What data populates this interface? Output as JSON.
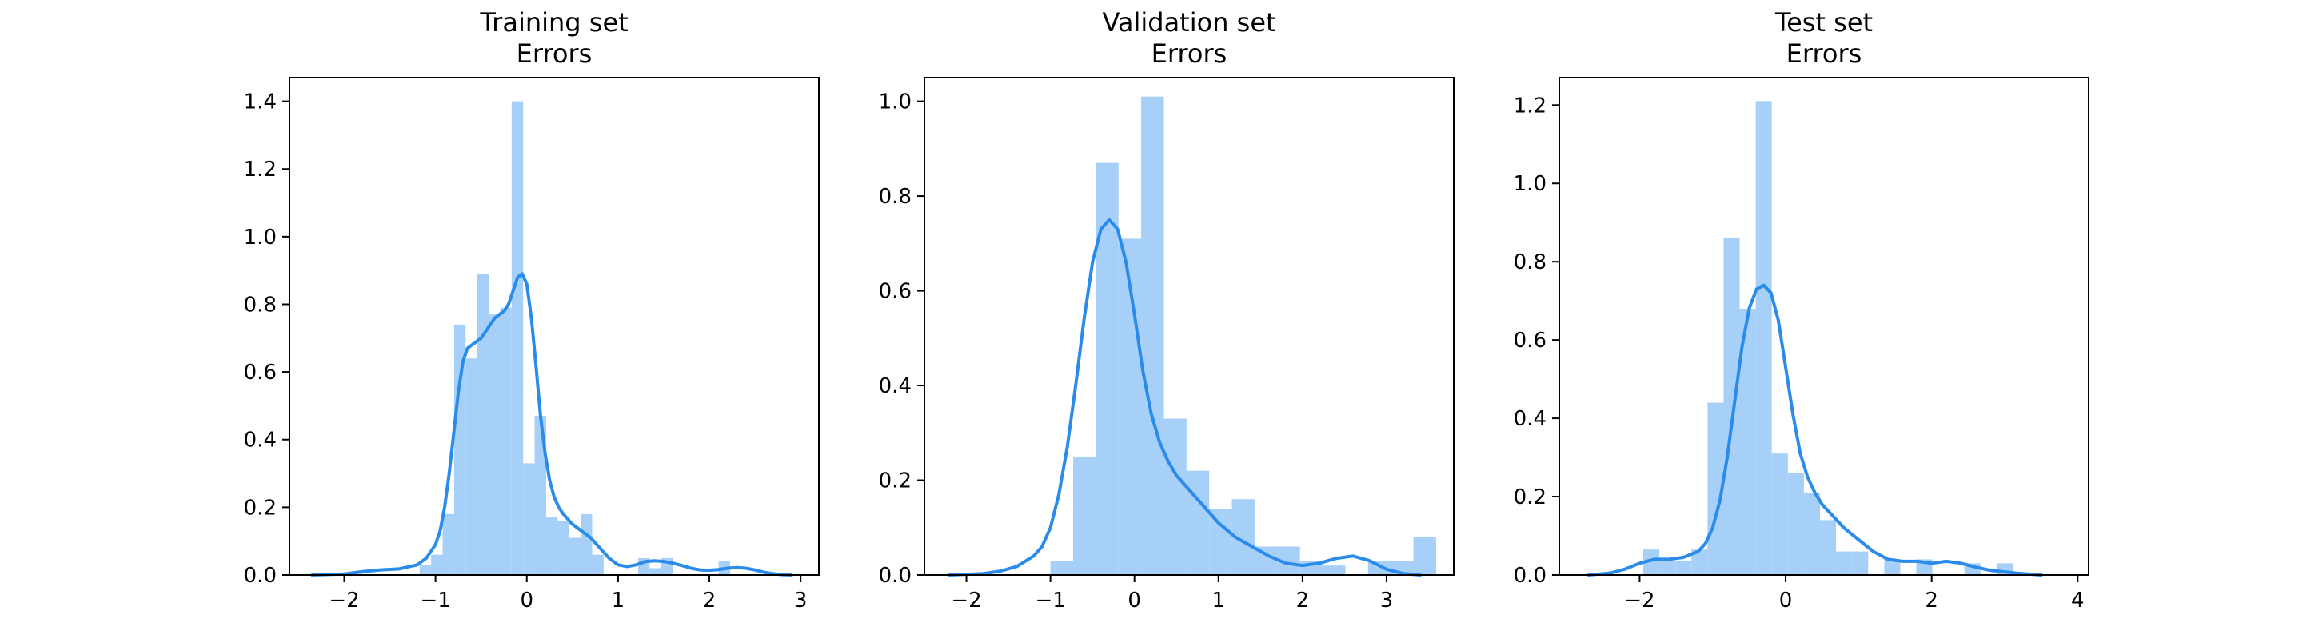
{
  "colors": {
    "bar": "#a6d0f8",
    "line": "#2a8bea",
    "axes": "#000000",
    "background": "#ffffff"
  },
  "chart_data": [
    {
      "type": "bar",
      "title_line1": "Training set",
      "title_line2": "Errors",
      "xlabel": "",
      "ylabel": "",
      "xlim": [
        -2.6,
        3.2
      ],
      "ylim": [
        0,
        1.47
      ],
      "grid": false,
      "xticks": [
        -2,
        -1,
        0,
        1,
        2,
        3
      ],
      "xtick_labels": [
        "−2",
        "−1",
        "0",
        "1",
        "2",
        "3"
      ],
      "yticks": [
        0.0,
        0.2,
        0.4,
        0.6,
        0.8,
        1.0,
        1.2,
        1.4
      ],
      "ytick_labels": [
        "0.0",
        "0.2",
        "0.4",
        "0.6",
        "0.8",
        "1.0",
        "1.2",
        "1.4"
      ],
      "histogram": {
        "bin_start": -1.93,
        "bin_width": 0.126,
        "values": [
          0.01,
          0.0,
          0.0,
          0.0,
          0.0,
          0.0,
          0.03,
          0.06,
          0.18,
          0.74,
          0.64,
          0.89,
          0.77,
          0.79,
          1.4,
          0.33,
          0.47,
          0.17,
          0.16,
          0.11,
          0.18,
          0.06,
          0.0,
          0.0,
          0.0,
          0.05,
          0.02,
          0.05,
          0.0,
          0.0,
          0.0,
          0.0,
          0.04,
          0.0
        ]
      },
      "kde": {
        "x": [
          -2.35,
          -2.0,
          -1.8,
          -1.6,
          -1.4,
          -1.2,
          -1.1,
          -1.0,
          -0.95,
          -0.9,
          -0.85,
          -0.8,
          -0.75,
          -0.7,
          -0.65,
          -0.6,
          -0.55,
          -0.5,
          -0.45,
          -0.4,
          -0.35,
          -0.3,
          -0.25,
          -0.2,
          -0.15,
          -0.1,
          -0.05,
          0.0,
          0.05,
          0.1,
          0.15,
          0.2,
          0.25,
          0.3,
          0.35,
          0.4,
          0.5,
          0.6,
          0.7,
          0.8,
          0.9,
          1.0,
          1.1,
          1.2,
          1.3,
          1.4,
          1.5,
          1.6,
          1.7,
          1.8,
          1.9,
          2.0,
          2.1,
          2.2,
          2.3,
          2.4,
          2.5,
          2.6,
          2.7,
          2.8,
          2.9
        ],
        "y": [
          0.0,
          0.003,
          0.01,
          0.015,
          0.018,
          0.03,
          0.05,
          0.09,
          0.13,
          0.2,
          0.3,
          0.42,
          0.54,
          0.63,
          0.67,
          0.68,
          0.69,
          0.7,
          0.72,
          0.74,
          0.76,
          0.77,
          0.78,
          0.8,
          0.84,
          0.88,
          0.89,
          0.86,
          0.76,
          0.62,
          0.47,
          0.36,
          0.28,
          0.23,
          0.2,
          0.18,
          0.15,
          0.13,
          0.11,
          0.08,
          0.05,
          0.03,
          0.025,
          0.03,
          0.04,
          0.042,
          0.04,
          0.035,
          0.028,
          0.02,
          0.015,
          0.014,
          0.016,
          0.02,
          0.022,
          0.02,
          0.015,
          0.008,
          0.004,
          0.001,
          0.0
        ]
      }
    },
    {
      "type": "bar",
      "title_line1": "Validation set",
      "title_line2": "Errors",
      "xlabel": "",
      "ylabel": "",
      "xlim": [
        -2.5,
        3.8
      ],
      "ylim": [
        0,
        1.05
      ],
      "grid": false,
      "xticks": [
        -2,
        -1,
        0,
        1,
        2,
        3
      ],
      "xtick_labels": [
        "−2",
        "−1",
        "0",
        "1",
        "2",
        "3"
      ],
      "yticks": [
        0.0,
        0.2,
        0.4,
        0.6,
        0.8,
        1.0
      ],
      "ytick_labels": [
        "0.0",
        "0.2",
        "0.4",
        "0.6",
        "0.8",
        "1.0"
      ],
      "histogram": {
        "bin_start": -1.0,
        "bin_width": 0.27,
        "values": [
          0.03,
          0.25,
          0.87,
          0.71,
          1.01,
          0.33,
          0.22,
          0.14,
          0.16,
          0.06,
          0.06,
          0.03,
          0.02,
          0.0,
          0.03,
          0.03,
          0.08
        ]
      },
      "kde": {
        "x": [
          -2.2,
          -1.8,
          -1.6,
          -1.4,
          -1.2,
          -1.1,
          -1.0,
          -0.9,
          -0.8,
          -0.7,
          -0.6,
          -0.5,
          -0.4,
          -0.3,
          -0.2,
          -0.1,
          0.0,
          0.1,
          0.2,
          0.3,
          0.4,
          0.5,
          0.6,
          0.7,
          0.8,
          0.9,
          1.0,
          1.2,
          1.4,
          1.6,
          1.8,
          2.0,
          2.2,
          2.4,
          2.6,
          2.8,
          3.0,
          3.2,
          3.4
        ],
        "y": [
          0.0,
          0.003,
          0.008,
          0.018,
          0.04,
          0.06,
          0.1,
          0.17,
          0.27,
          0.4,
          0.54,
          0.66,
          0.73,
          0.75,
          0.73,
          0.66,
          0.55,
          0.43,
          0.34,
          0.28,
          0.24,
          0.21,
          0.19,
          0.17,
          0.15,
          0.13,
          0.11,
          0.08,
          0.06,
          0.04,
          0.025,
          0.02,
          0.025,
          0.035,
          0.04,
          0.03,
          0.012,
          0.003,
          0.0
        ]
      }
    },
    {
      "type": "bar",
      "title_line1": "Test set",
      "title_line2": "Errors",
      "xlabel": "",
      "ylabel": "",
      "xlim": [
        -3.1,
        4.15
      ],
      "ylim": [
        0,
        1.27
      ],
      "grid": false,
      "xticks": [
        -2,
        0,
        2,
        4
      ],
      "xtick_labels": [
        "−2",
        "0",
        "2",
        "4"
      ],
      "yticks": [
        0.0,
        0.2,
        0.4,
        0.6,
        0.8,
        1.0,
        1.2
      ],
      "ytick_labels": [
        "0.0",
        "0.2",
        "0.4",
        "0.6",
        "0.8",
        "1.0",
        "1.2"
      ],
      "histogram": {
        "bin_start": -1.95,
        "bin_width": 0.22,
        "values": [
          0.065,
          0.035,
          0.035,
          0.065,
          0.44,
          0.86,
          0.68,
          1.21,
          0.31,
          0.26,
          0.21,
          0.14,
          0.06,
          0.06,
          0.0,
          0.04,
          0.0,
          0.04,
          0.0,
          0.0,
          0.03,
          0.0,
          0.03
        ]
      },
      "kde": {
        "x": [
          -2.7,
          -2.4,
          -2.2,
          -2.0,
          -1.8,
          -1.6,
          -1.4,
          -1.2,
          -1.1,
          -1.0,
          -0.9,
          -0.8,
          -0.7,
          -0.6,
          -0.5,
          -0.4,
          -0.3,
          -0.2,
          -0.1,
          0.0,
          0.1,
          0.2,
          0.3,
          0.4,
          0.5,
          0.6,
          0.8,
          1.0,
          1.2,
          1.4,
          1.6,
          1.8,
          2.0,
          2.2,
          2.4,
          2.6,
          2.8,
          3.0,
          3.2,
          3.5
        ],
        "y": [
          0.0,
          0.005,
          0.015,
          0.03,
          0.04,
          0.04,
          0.045,
          0.06,
          0.08,
          0.12,
          0.19,
          0.3,
          0.44,
          0.58,
          0.68,
          0.73,
          0.74,
          0.72,
          0.65,
          0.53,
          0.41,
          0.31,
          0.25,
          0.21,
          0.18,
          0.16,
          0.12,
          0.09,
          0.06,
          0.04,
          0.035,
          0.035,
          0.03,
          0.035,
          0.03,
          0.02,
          0.012,
          0.008,
          0.004,
          0.0
        ]
      }
    }
  ]
}
